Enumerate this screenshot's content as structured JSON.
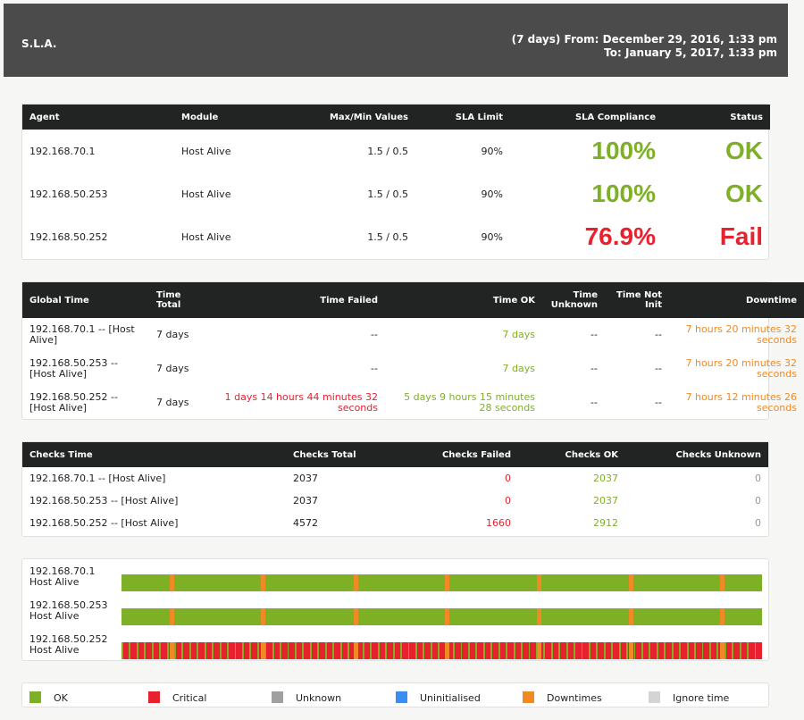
{
  "header": {
    "title": "S.L.A.",
    "date_from": "(7 days) From: December 29, 2016, 1:33 pm",
    "date_to": "To: January 5, 2017, 1:33 pm"
  },
  "colors": {
    "ok": "#7eb026",
    "critical": "#e8212f",
    "unknown": "#a0a0a0",
    "uninitialised": "#3b8ef0",
    "downtimes": "#f08a24",
    "ignore": "#d4d4d4"
  },
  "sla_table": {
    "headers": {
      "agent": "Agent",
      "module": "Module",
      "maxmin": "Max/Min Values",
      "limit": "SLA Limit",
      "compliance": "SLA Compliance",
      "status": "Status"
    },
    "rows": [
      {
        "agent": "192.168.70.1",
        "module": "Host Alive",
        "maxmin": "1.5 / 0.5",
        "limit": "90%",
        "compliance": "100%",
        "status": "OK"
      },
      {
        "agent": "192.168.50.253",
        "module": "Host Alive",
        "maxmin": "1.5 / 0.5",
        "limit": "90%",
        "compliance": "100%",
        "status": "OK"
      },
      {
        "agent": "192.168.50.252",
        "module": "Host Alive",
        "maxmin": "1.5 / 0.5",
        "limit": "90%",
        "compliance": "76.9%",
        "status": "Fail"
      }
    ]
  },
  "time_table": {
    "headers": {
      "global": "Global Time",
      "total": "Time Total",
      "failed": "Time Failed",
      "ok": "Time OK",
      "unknown": "Time Unknown",
      "notinit": "Time Not Init",
      "downtime": "Downtime"
    },
    "rows": [
      {
        "name": "192.168.70.1 -- [Host Alive]",
        "total": "7 days",
        "failed": "--",
        "ok": "7 days",
        "unknown": "--",
        "notinit": "--",
        "downtime": "7 hours 20 minutes 32 seconds"
      },
      {
        "name": "192.168.50.253 -- [Host Alive]",
        "total": "7 days",
        "failed": "--",
        "ok": "7 days",
        "unknown": "--",
        "notinit": "--",
        "downtime": "7 hours 20 minutes 32 seconds"
      },
      {
        "name": "192.168.50.252 -- [Host Alive]",
        "total": "7 days",
        "failed": "1 days 14 hours 44 minutes 32 seconds",
        "ok": "5 days 9 hours 15 minutes 28 seconds",
        "unknown": "--",
        "notinit": "--",
        "downtime": "7 hours 12 minutes 26 seconds"
      }
    ]
  },
  "checks_table": {
    "headers": {
      "name": "Checks Time",
      "total": "Checks Total",
      "failed": "Checks Failed",
      "ok": "Checks OK",
      "unknown": "Checks Unknown"
    },
    "rows": [
      {
        "name": "192.168.70.1 -- [Host Alive]",
        "total": "2037",
        "failed": "0",
        "ok": "2037",
        "unknown": "0"
      },
      {
        "name": "192.168.50.253 -- [Host Alive]",
        "total": "2037",
        "failed": "0",
        "ok": "2037",
        "unknown": "0"
      },
      {
        "name": "192.168.50.252 -- [Host Alive]",
        "total": "4572",
        "failed": "1660",
        "ok": "2912",
        "unknown": "0"
      }
    ]
  },
  "timeline": {
    "rows": [
      {
        "agent": "192.168.70.1",
        "module": "Host Alive",
        "pattern": "ok",
        "downtime_marks": [
          0.075,
          0.218,
          0.362,
          0.505,
          0.648,
          0.792,
          0.935
        ]
      },
      {
        "agent": "192.168.50.253",
        "module": "Host Alive",
        "pattern": "ok",
        "downtime_marks": [
          0.075,
          0.218,
          0.362,
          0.505,
          0.648,
          0.792,
          0.935
        ]
      },
      {
        "agent": "192.168.50.252",
        "module": "Host Alive",
        "pattern": "mixed",
        "downtime_marks": [
          0.075,
          0.218,
          0.362,
          0.505,
          0.648,
          0.792,
          0.935
        ]
      }
    ]
  },
  "legend": [
    {
      "key": "ok",
      "label": "OK"
    },
    {
      "key": "critical",
      "label": "Critical"
    },
    {
      "key": "unknown",
      "label": "Unknown"
    },
    {
      "key": "uninitialised",
      "label": "Uninitialised"
    },
    {
      "key": "downtimes",
      "label": "Downtimes"
    },
    {
      "key": "ignore",
      "label": "Ignore time"
    }
  ]
}
